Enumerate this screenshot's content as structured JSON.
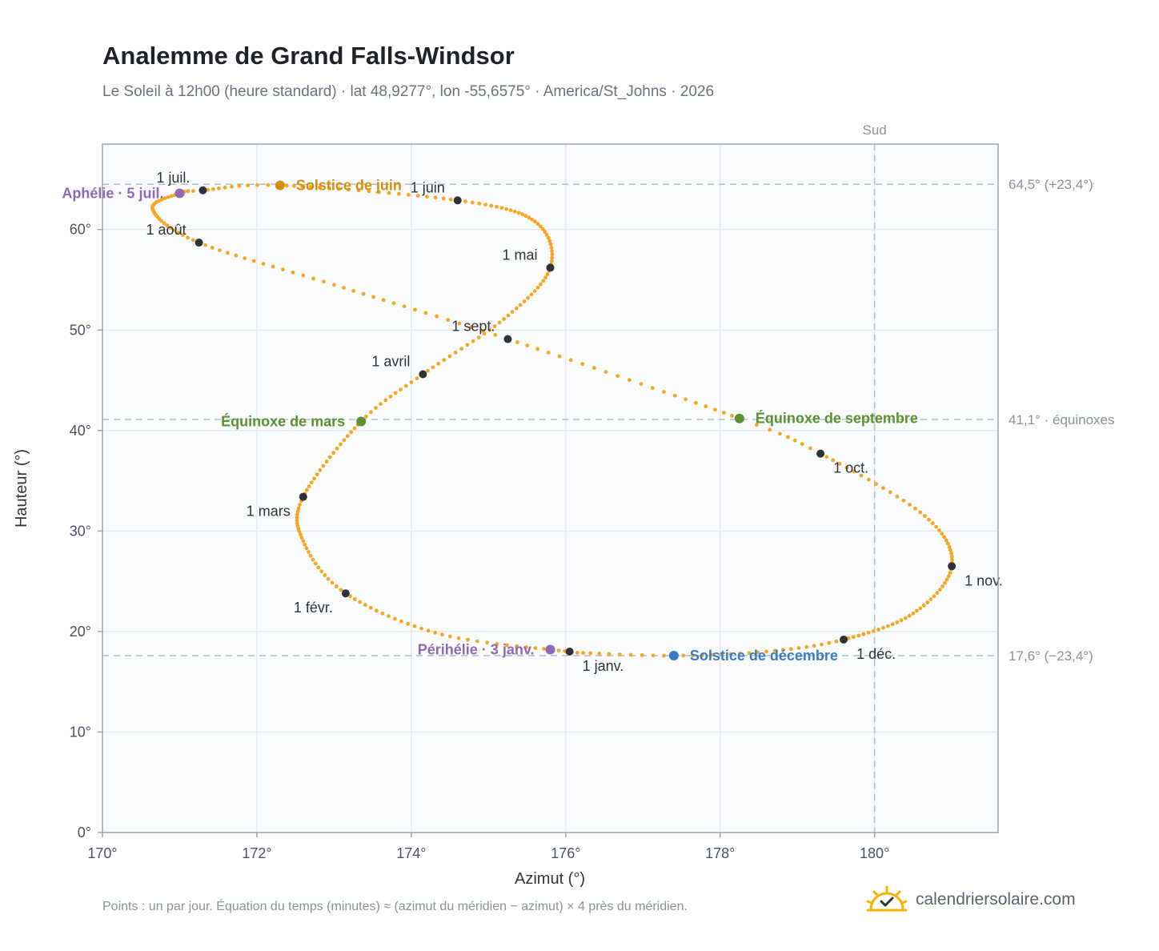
{
  "title": "Analemme de Grand Falls-Windsor",
  "subtitle": "Le Soleil à 12h00 (heure standard) · lat 48,9277°, lon -55,6575° · America/St_Johns · 2026",
  "footnote": "Points : un par jour. Équation du temps (minutes) ≈ (azimut du méridien − azimut) × 4 près du méridien.",
  "brand": {
    "name": "calendriersolaire.com",
    "icon": "sun-check-icon"
  },
  "colors": {
    "curve": "#f5a623",
    "month_marker": "#2f3338",
    "solstice_june": "#d4900a",
    "solstice_december": "#3a7cc3",
    "equinox": "#5a9131",
    "apsis": "#8f69b4",
    "reference_line": "#b6c0cc",
    "plot_background": "#fafbfd",
    "grid": "#e4e8ee"
  },
  "chart_data": {
    "type": "scatter",
    "xlabel": "Azimut (°)",
    "ylabel": "Hauteur (°)",
    "xlim": [
      170,
      181.6
    ],
    "ylim": [
      0,
      68.5
    ],
    "x_ticks": [
      {
        "value": 170,
        "label": "170°"
      },
      {
        "value": 172,
        "label": "172°"
      },
      {
        "value": 174,
        "label": "174°"
      },
      {
        "value": 176,
        "label": "176°"
      },
      {
        "value": 178,
        "label": "178°"
      },
      {
        "value": 180,
        "label": "180°"
      }
    ],
    "y_ticks": [
      {
        "value": 0,
        "label": "0°"
      },
      {
        "value": 10,
        "label": "10°"
      },
      {
        "value": 20,
        "label": "20°"
      },
      {
        "value": 30,
        "label": "30°"
      },
      {
        "value": 40,
        "label": "40°"
      },
      {
        "value": 50,
        "label": "50°"
      },
      {
        "value": 60,
        "label": "60°"
      }
    ],
    "grid": true,
    "curve_samples": [
      {
        "doy": 1,
        "az": 176.05,
        "alt": 18.0
      },
      {
        "doy": 16,
        "az": 174.4,
        "alt": 19.7
      },
      {
        "doy": 32,
        "az": 173.15,
        "alt": 23.8
      },
      {
        "doy": 46,
        "az": 172.6,
        "alt": 29.0
      },
      {
        "doy": 60,
        "az": 172.6,
        "alt": 33.4
      },
      {
        "doy": 79,
        "az": 173.35,
        "alt": 40.9
      },
      {
        "doy": 91,
        "az": 174.15,
        "alt": 45.6
      },
      {
        "doy": 106,
        "az": 175.2,
        "alt": 51.1
      },
      {
        "doy": 121,
        "az": 175.8,
        "alt": 56.2
      },
      {
        "doy": 136,
        "az": 175.6,
        "alt": 60.8
      },
      {
        "doy": 152,
        "az": 174.6,
        "alt": 62.9
      },
      {
        "doy": 172,
        "az": 172.3,
        "alt": 64.4
      },
      {
        "doy": 182,
        "az": 171.3,
        "alt": 63.9
      },
      {
        "doy": 186,
        "az": 171.0,
        "alt": 63.6
      },
      {
        "doy": 198,
        "az": 170.65,
        "alt": 62.0
      },
      {
        "doy": 213,
        "az": 171.25,
        "alt": 58.7
      },
      {
        "doy": 228,
        "az": 173.0,
        "alt": 54.5
      },
      {
        "doy": 244,
        "az": 175.25,
        "alt": 49.1
      },
      {
        "doy": 266,
        "az": 178.25,
        "alt": 41.2
      },
      {
        "doy": 274,
        "az": 179.3,
        "alt": 37.7
      },
      {
        "doy": 290,
        "az": 180.65,
        "alt": 31.5
      },
      {
        "doy": 305,
        "az": 181.0,
        "alt": 26.5
      },
      {
        "doy": 320,
        "az": 180.5,
        "alt": 21.8
      },
      {
        "doy": 335,
        "az": 179.6,
        "alt": 19.2
      },
      {
        "doy": 345,
        "az": 178.6,
        "alt": 18.0
      },
      {
        "doy": 355,
        "az": 177.4,
        "alt": 17.6
      },
      {
        "doy": 365,
        "az": 176.15,
        "alt": 17.9
      }
    ],
    "month_markers": [
      {
        "label": "1 janv.",
        "az": 176.05,
        "alt": 18.0,
        "label_pos": "below-right"
      },
      {
        "label": "1 févr.",
        "az": 173.15,
        "alt": 23.8,
        "label_pos": "below-left"
      },
      {
        "label": "1 mars",
        "az": 172.6,
        "alt": 33.4,
        "label_pos": "below-left"
      },
      {
        "label": "1 avril",
        "az": 174.15,
        "alt": 45.6,
        "label_pos": "above-left"
      },
      {
        "label": "1 mai",
        "az": 175.8,
        "alt": 56.2,
        "label_pos": "above-left"
      },
      {
        "label": "1 juin",
        "az": 174.6,
        "alt": 62.9,
        "label_pos": "above-left"
      },
      {
        "label": "1 juil.",
        "az": 171.3,
        "alt": 63.9,
        "label_pos": "above-left"
      },
      {
        "label": "1 août",
        "az": 171.25,
        "alt": 58.7,
        "label_pos": "above-left"
      },
      {
        "label": "1 sept.",
        "az": 175.25,
        "alt": 49.1,
        "label_pos": "above-left"
      },
      {
        "label": "1 oct.",
        "az": 179.3,
        "alt": 37.7,
        "label_pos": "below-right"
      },
      {
        "label": "1 nov.",
        "az": 181.0,
        "alt": 26.5,
        "label_pos": "below-right"
      },
      {
        "label": "1 déc.",
        "az": 179.6,
        "alt": 19.2,
        "label_pos": "below-right"
      }
    ],
    "events": [
      {
        "label": "Solstice de juin",
        "az": 172.3,
        "alt": 64.4,
        "color": "#d4900a",
        "label_pos": "right"
      },
      {
        "label": "Solstice de décembre",
        "az": 177.4,
        "alt": 17.6,
        "color": "#3a7cc3",
        "label_pos": "right"
      },
      {
        "label": "Équinoxe de mars",
        "az": 173.35,
        "alt": 40.9,
        "color": "#5a9131",
        "label_pos": "left"
      },
      {
        "label": "Équinoxe de septembre",
        "az": 178.25,
        "alt": 41.2,
        "color": "#5a9131",
        "label_pos": "right"
      },
      {
        "label": "Aphélie · 5 juil.",
        "az": 171.0,
        "alt": 63.6,
        "color": "#8f69b4",
        "label_pos": "left"
      },
      {
        "label": "Périhélie · 3 janv.",
        "az": 175.8,
        "alt": 18.2,
        "color": "#8f69b4",
        "label_pos": "left"
      }
    ],
    "reference_lines": {
      "horizontal": [
        {
          "value": 64.5,
          "label": "64,5° (+23,4°)"
        },
        {
          "value": 41.1,
          "label": "41,1° · équinoxes"
        },
        {
          "value": 17.6,
          "label": "17,6° (−23,4°)"
        }
      ],
      "vertical": [
        {
          "value": 180,
          "label": "Sud"
        }
      ]
    }
  }
}
